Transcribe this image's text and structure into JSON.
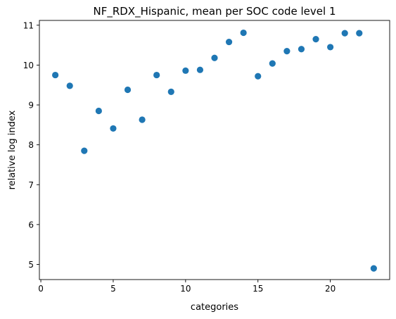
{
  "chart_data": {
    "type": "scatter",
    "title": "NF_RDX_Hispanic, mean per SOC code level 1",
    "xlabel": "categories",
    "ylabel": "relative log index",
    "xlim": [
      -0.1,
      24.1
    ],
    "ylim": [
      4.62,
      11.12
    ],
    "xticks": [
      0,
      5,
      10,
      15,
      20
    ],
    "yticks": [
      5,
      6,
      7,
      8,
      9,
      10,
      11
    ],
    "grid": false,
    "legend": "none",
    "marker_color": "#1f77b4",
    "x": [
      1,
      2,
      3,
      4,
      5,
      6,
      7,
      8,
      9,
      10,
      11,
      12,
      13,
      14,
      15,
      16,
      17,
      18,
      19,
      20,
      21,
      22,
      23
    ],
    "y": [
      9.75,
      9.48,
      7.85,
      8.85,
      8.41,
      9.38,
      8.63,
      9.75,
      9.33,
      9.86,
      9.88,
      10.18,
      10.58,
      10.81,
      9.72,
      10.04,
      10.35,
      10.4,
      10.65,
      10.45,
      10.8,
      10.8,
      4.9
    ]
  }
}
